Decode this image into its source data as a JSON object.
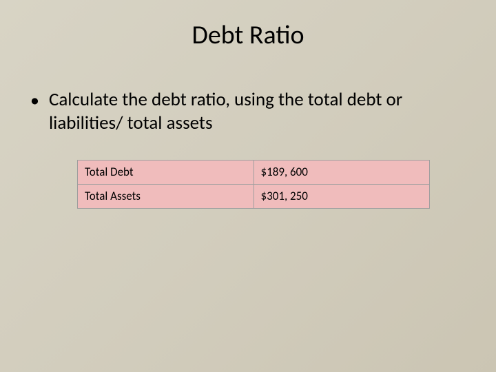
{
  "slide": {
    "title": "Debt Ratio",
    "bullet_text": "Calculate the debt ratio, using the total debt or liabilities/ total assets"
  },
  "table": {
    "type": "table",
    "row_bg_color": "#f0bcbc",
    "border_color": "#9e9e9e",
    "text_color": "#000000",
    "font_size_pt": 13,
    "columns": [
      "label",
      "value"
    ],
    "rows": [
      {
        "label": "Total Debt",
        "value": "$189, 600"
      },
      {
        "label": "Total Assets",
        "value": "$301, 250"
      }
    ]
  },
  "style": {
    "background_gradient_start": "#d8d4c5",
    "background_gradient_end": "#cbc5b3",
    "title_font_size_pt": 29,
    "body_font_size_pt": 20
  }
}
